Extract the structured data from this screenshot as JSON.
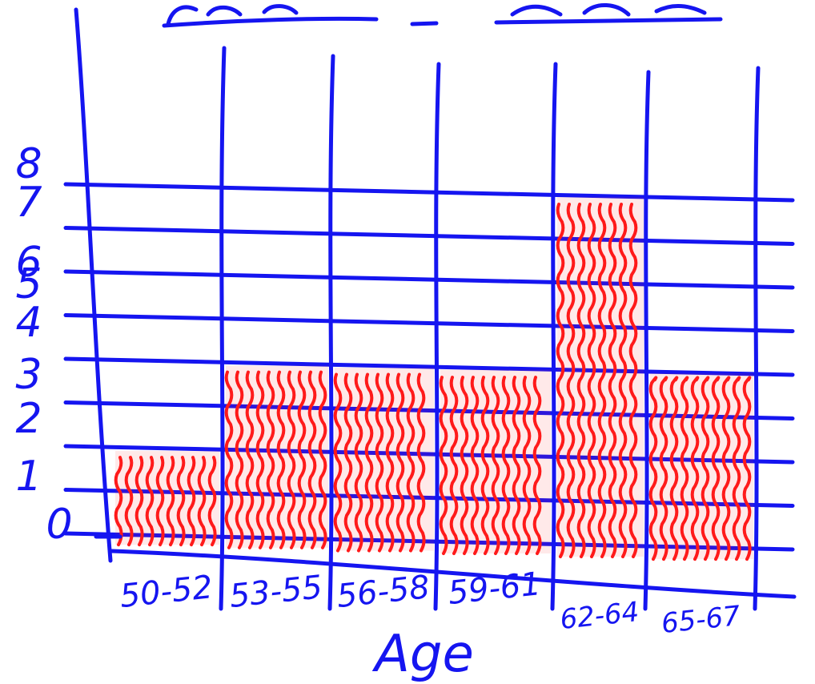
{
  "colors": {
    "ink": "#1515f0",
    "bar": "#ff1a1a",
    "background": "#ffffff"
  },
  "chart_data": {
    "type": "bar",
    "title": "",
    "xlabel": "Age",
    "ylabel": "",
    "categories": [
      "50-52",
      "53-55",
      "56-58",
      "59-61",
      "62-64",
      "65-67"
    ],
    "values": [
      2,
      4,
      4,
      4,
      8,
      4
    ],
    "yticks": [
      "0",
      "1",
      "2",
      "3",
      "4",
      "5",
      "6",
      "7",
      "8"
    ],
    "ylim": [
      0,
      8
    ],
    "grid": true,
    "legend": "none"
  }
}
